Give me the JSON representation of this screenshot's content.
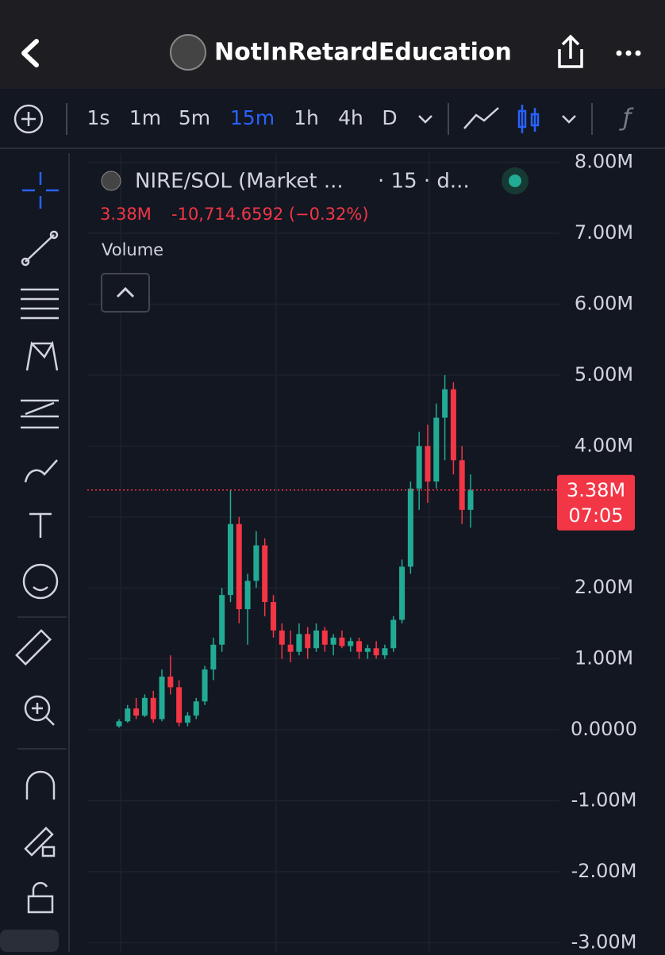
{
  "header": {
    "title": "NotInRetardEducation"
  },
  "toolbar": {
    "intervals": [
      "1s",
      "1m",
      "5m",
      "15m",
      "1h",
      "4h",
      "D"
    ],
    "active_interval": 3
  },
  "legend": {
    "symbol": "NIRE/SOL (Market ...",
    "details": "· 15 · d...",
    "change": "-10,714.6592 (−0.32%)",
    "study": "Volume"
  },
  "chart_data": {
    "type": "candlestick",
    "open": [
      50000,
      120000,
      300000,
      200000,
      450000,
      150000,
      750000,
      600000,
      100000,
      200000,
      400000,
      850000,
      1200000,
      1900000,
      2900000,
      1700000,
      2100000,
      2600000,
      1800000,
      1400000,
      1200000,
      1100000,
      1350000,
      1150000,
      1400000,
      1200000,
      1300000,
      1180000,
      1250000,
      1100000,
      1150000,
      1050000,
      1150000,
      1550000,
      2300000,
      3400000,
      4000000,
      3500000,
      4400000,
      4800000,
      3800000,
      3100000
    ],
    "high": [
      150000,
      350000,
      450000,
      500000,
      550000,
      850000,
      1050000,
      700000,
      250000,
      450000,
      900000,
      1300000,
      2000000,
      3380000,
      3000000,
      2200000,
      2800000,
      2700000,
      1900000,
      1500000,
      1400000,
      1500000,
      1450000,
      1500000,
      1450000,
      1350000,
      1400000,
      1300000,
      1300000,
      1200000,
      1250000,
      1200000,
      1600000,
      2400000,
      3500000,
      4200000,
      4300000,
      4600000,
      5000000,
      4900000,
      4000000,
      3600000
    ],
    "low": [
      30000,
      100000,
      150000,
      180000,
      100000,
      120000,
      500000,
      50000,
      50000,
      150000,
      350000,
      700000,
      1100000,
      1800000,
      1500000,
      1200000,
      2000000,
      1600000,
      1300000,
      1000000,
      950000,
      1050000,
      1000000,
      1100000,
      1100000,
      1050000,
      1150000,
      1100000,
      1000000,
      1000000,
      1000000,
      1000000,
      1100000,
      1500000,
      2200000,
      3100000,
      3200000,
      3400000,
      3800000,
      3600000,
      2900000,
      2850000
    ],
    "close": [
      120000,
      300000,
      200000,
      450000,
      150000,
      750000,
      600000,
      100000,
      200000,
      400000,
      850000,
      1200000,
      1900000,
      2900000,
      1700000,
      2100000,
      2600000,
      1800000,
      1400000,
      1200000,
      1100000,
      1350000,
      1150000,
      1400000,
      1200000,
      1300000,
      1180000,
      1250000,
      1100000,
      1150000,
      1050000,
      1150000,
      1550000,
      2300000,
      3400000,
      4000000,
      3500000,
      4400000,
      4800000,
      3800000,
      3100000,
      3380000
    ],
    "up_color": "#22ab94",
    "down_color": "#f23645",
    "ylim": [
      -3130000,
      8130000
    ],
    "yticks": [
      {
        "value": 8000000,
        "label": "8.00M"
      },
      {
        "value": 7000000,
        "label": "7.00M"
      },
      {
        "value": 6000000,
        "label": "6.00M"
      },
      {
        "value": 5000000,
        "label": "5.00M"
      },
      {
        "value": 4000000,
        "label": "4.00M"
      },
      {
        "value": 3000000,
        "label": "3.00M"
      },
      {
        "value": 2000000,
        "label": "2.00M"
      },
      {
        "value": 1000000,
        "label": "1.00M"
      },
      {
        "value": 0,
        "label": "0.0000"
      },
      {
        "value": -1000000,
        "label": "-1.00M"
      },
      {
        "value": -2000000,
        "label": "-2.00M"
      },
      {
        "value": -3000000,
        "label": "-3.00M"
      }
    ],
    "last_price": {
      "value": 3380000,
      "label": "3.38M"
    },
    "countdown": "07:05",
    "grid": true
  }
}
